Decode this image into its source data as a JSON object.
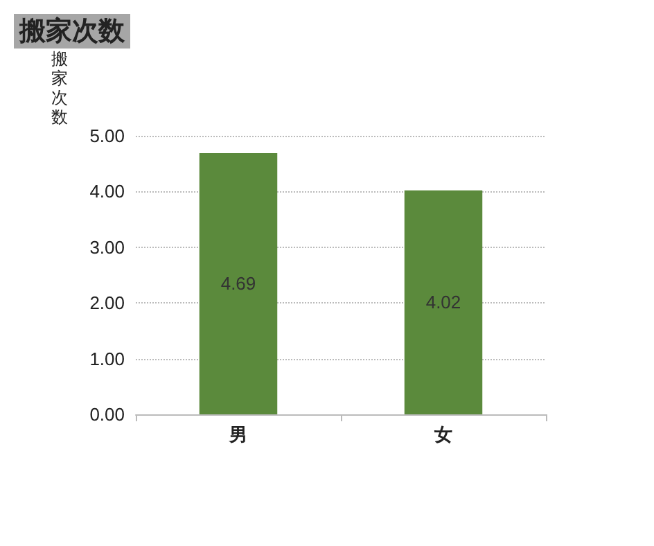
{
  "chart_data": {
    "type": "bar",
    "title": "搬家次数",
    "ylabel": "搬家次数",
    "categories": [
      "男",
      "女"
    ],
    "values": [
      4.69,
      4.02
    ],
    "color": "#5b8a3c",
    "data_labels": true,
    "grid": "y",
    "ylim": [
      0,
      5
    ],
    "yticks": [
      {
        "value": 0,
        "label": "0.00"
      },
      {
        "value": 1,
        "label": "1.00"
      },
      {
        "value": 2,
        "label": "2.00"
      },
      {
        "value": 3,
        "label": "3.00"
      },
      {
        "value": 4,
        "label": "4.00"
      },
      {
        "value": 5,
        "label": "5.00"
      }
    ]
  }
}
